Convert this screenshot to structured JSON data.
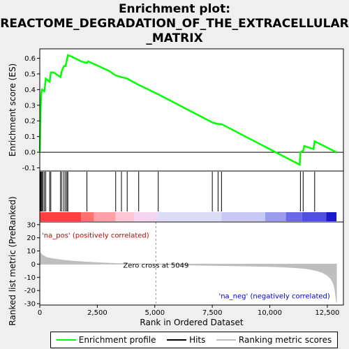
{
  "chart_data": {
    "type": "line",
    "title_lines": [
      "Enrichment plot:",
      "REACTOME_DEGRADATION_OF_THE_EXTRACELLULAR",
      "_MATRIX"
    ],
    "xlabel": "Rank in Ordered Dataset",
    "ylabel_top": "Enrichment score (ES)",
    "ylabel_bottom": "Ranked list metric (PreRanked)",
    "xlim": [
      0,
      13200
    ],
    "x_ticks": [
      0,
      2500,
      5000,
      7500,
      10000,
      12500
    ],
    "x_tick_labels": [
      "0",
      "2,500",
      "5,000",
      "7,500",
      "10,000",
      "12,500"
    ],
    "es_ylim": [
      -0.12,
      0.66
    ],
    "es_ticks": [
      -0.1,
      0.0,
      0.1,
      0.2,
      0.3,
      0.4,
      0.5,
      0.6
    ],
    "es_tick_labels": [
      "-0.1",
      "0.0",
      "0.1",
      "0.2",
      "0.3",
      "0.4",
      "0.5",
      "0.6"
    ],
    "metric_ylim": [
      -31,
      32
    ],
    "metric_ticks": [
      -30,
      -20,
      -10,
      0,
      10,
      20,
      30
    ],
    "metric_tick_labels": [
      "-30",
      "-20",
      "-10",
      "0",
      "10",
      "20",
      "30"
    ],
    "enrichment_profile": {
      "x": [
        0,
        20,
        40,
        70,
        100,
        200,
        260,
        430,
        480,
        600,
        900,
        960,
        1050,
        1120,
        1180,
        1220,
        1400,
        1800,
        2050,
        2100,
        3000,
        3300,
        3550,
        3800,
        4300,
        5150,
        7500,
        7750,
        7900,
        11300,
        11330,
        11450,
        11500,
        11900,
        11950,
        12900
      ],
      "y": [
        0.0,
        0.18,
        0.3,
        0.38,
        0.4,
        0.39,
        0.47,
        0.45,
        0.51,
        0.51,
        0.48,
        0.52,
        0.55,
        0.55,
        0.59,
        0.62,
        0.61,
        0.58,
        0.57,
        0.58,
        0.52,
        0.49,
        0.48,
        0.47,
        0.43,
        0.37,
        0.19,
        0.18,
        0.18,
        -0.08,
        0.0,
        0.01,
        0.04,
        0.02,
        0.07,
        0.0
      ]
    },
    "hits": [
      10,
      30,
      60,
      95,
      140,
      200,
      260,
      430,
      480,
      900,
      960,
      1050,
      1120,
      1180,
      1220,
      2050,
      3300,
      3550,
      3800,
      4300,
      5150,
      7500,
      7750,
      7900,
      11330,
      11450,
      11950
    ],
    "ranked_metric": {
      "x": [
        0,
        100,
        300,
        600,
        1000,
        1500,
        2000,
        2500,
        3000,
        3500,
        4000,
        4500,
        5049,
        6000,
        7000,
        8000,
        9000,
        10000,
        10500,
        11000,
        11500,
        11800,
        12100,
        12300,
        12500,
        12650,
        12750,
        12820,
        12860,
        12900
      ],
      "y": [
        9,
        7,
        5,
        4,
        3,
        2.2,
        1.6,
        1.1,
        0.7,
        0.4,
        0.2,
        0.1,
        0,
        -0.5,
        -0.8,
        -1.1,
        -1.4,
        -1.8,
        -2.1,
        -2.5,
        -3.2,
        -4,
        -5.2,
        -6.5,
        -8.5,
        -11,
        -14,
        -18,
        -23,
        -29
      ]
    },
    "bar_segments": [
      {
        "x0": 0,
        "x1": 1800,
        "color": "#ff4040"
      },
      {
        "x0": 1800,
        "x1": 2350,
        "color": "#ff7070"
      },
      {
        "x0": 2350,
        "x1": 3300,
        "color": "#ffa0a8"
      },
      {
        "x0": 3300,
        "x1": 4100,
        "color": "#ffc6d8"
      },
      {
        "x0": 4100,
        "x1": 5100,
        "color": "#f5d4ef"
      },
      {
        "x0": 5100,
        "x1": 7900,
        "color": "#dcdcf6"
      },
      {
        "x0": 7900,
        "x1": 9800,
        "color": "#c8c8f4"
      },
      {
        "x0": 9800,
        "x1": 10700,
        "color": "#9c9cee"
      },
      {
        "x0": 10700,
        "x1": 11400,
        "color": "#6a6ae6"
      },
      {
        "x0": 11400,
        "x1": 12450,
        "color": "#5050dc"
      },
      {
        "x0": 12450,
        "x1": 12900,
        "color": "#1a1ac8"
      }
    ],
    "zero_cross": 5049,
    "annotation_pos": "'na_pos' (positively correlated)",
    "annotation_neg": "'na_neg' (negatively correlated)",
    "annotation_zero": "Zero cross at 5049",
    "colors": {
      "profile": "#00ff00",
      "hits": "#000000",
      "metric": "#bebebe"
    }
  },
  "legend": {
    "items": [
      {
        "label": "Enrichment profile",
        "color": "#00ff00",
        "icon": "green-line"
      },
      {
        "label": "Hits",
        "color": "#000000",
        "icon": "black-line"
      },
      {
        "label": "Ranking metric scores",
        "color": "#bebebe",
        "icon": "gray-line"
      }
    ]
  }
}
